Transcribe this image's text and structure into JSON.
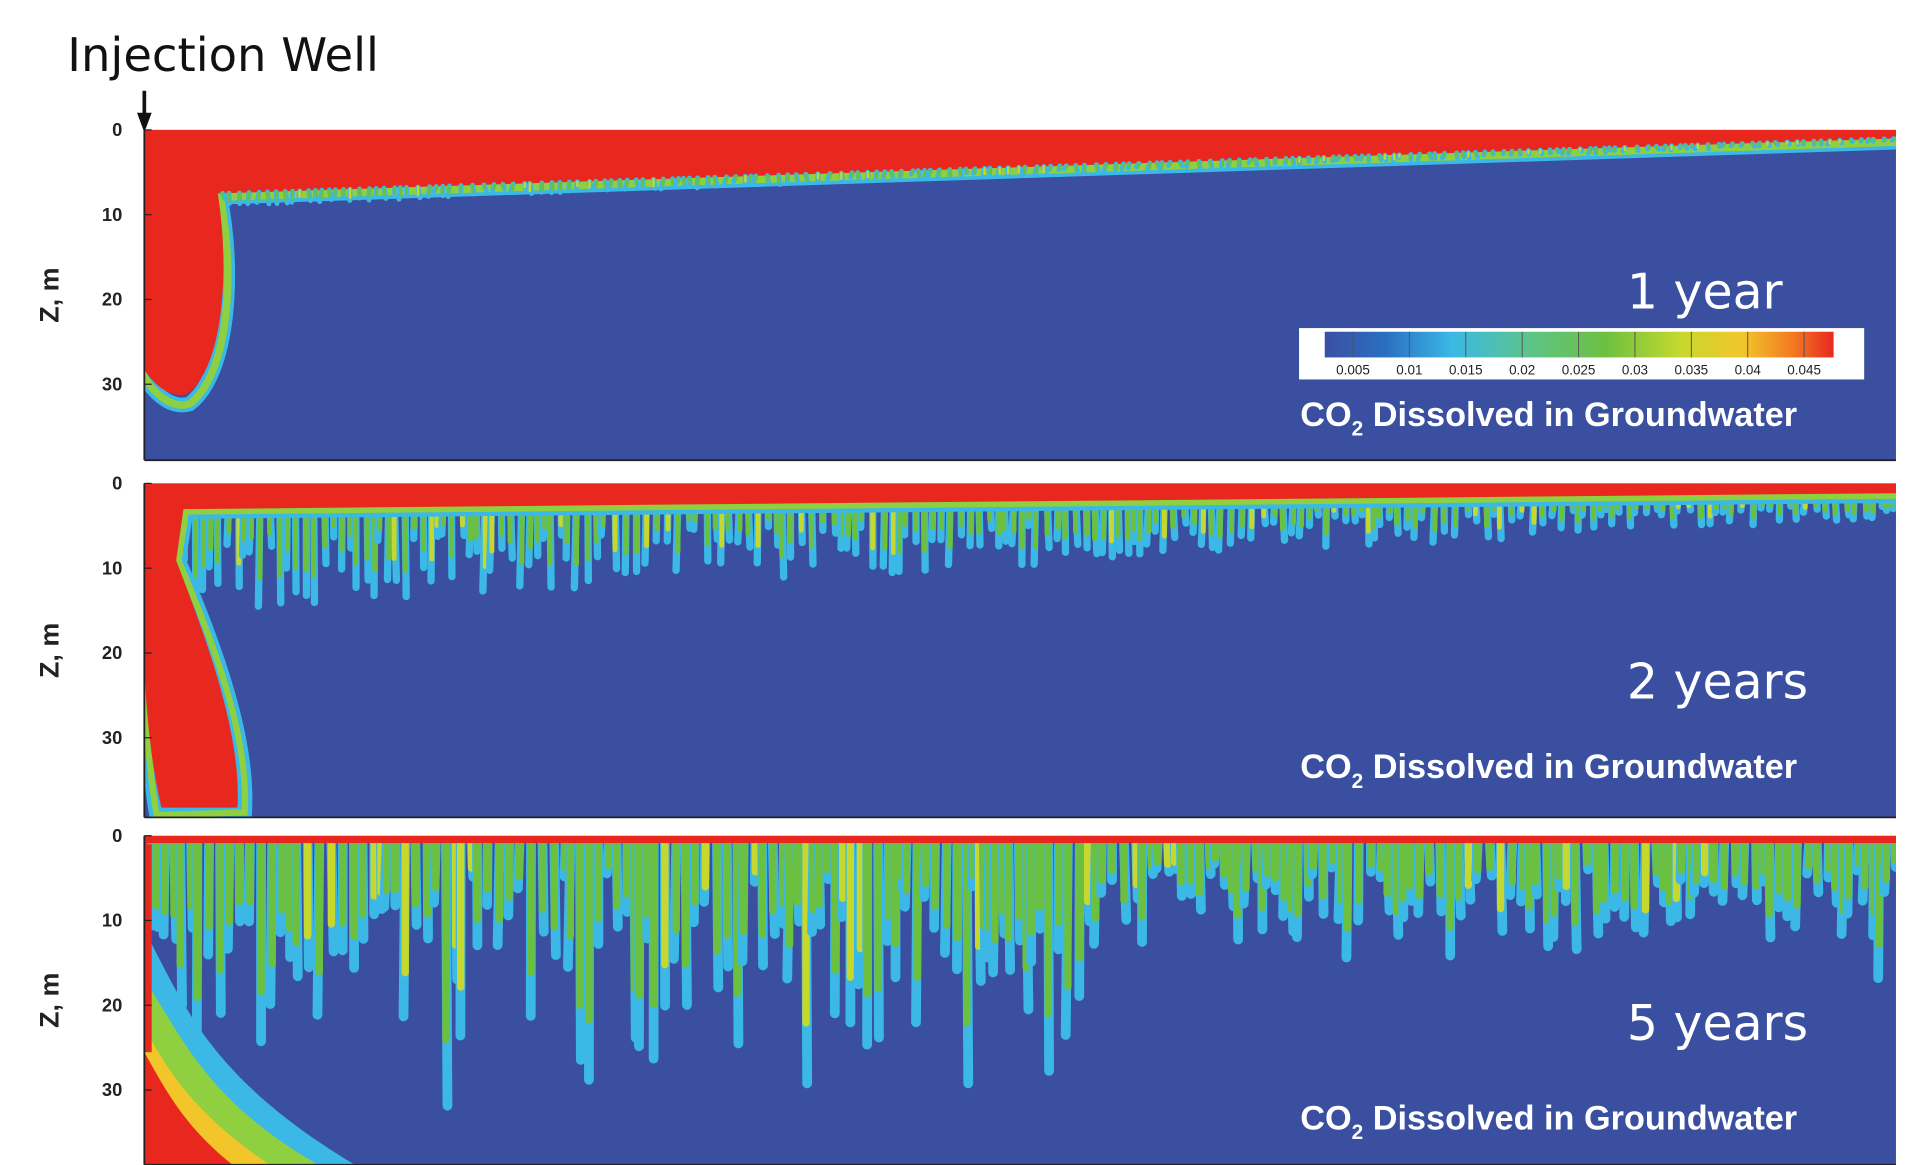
{
  "header": {
    "title": "Injection Well"
  },
  "panels": [
    {
      "label": "1 year",
      "yaxis": {
        "label": "Z, m",
        "ticks": [
          0,
          10,
          20,
          30
        ]
      },
      "caption": {
        "main": "CO",
        "subscript": "2",
        "rest": " Dissolved in Groundwater"
      }
    },
    {
      "label": "2 years",
      "yaxis": {
        "label": "Z, m",
        "ticks": [
          0,
          10,
          20,
          30
        ]
      },
      "caption": {
        "main": "CO",
        "subscript": "2",
        "rest": " Dissolved in Groundwater"
      }
    },
    {
      "label": "5 years",
      "yaxis": {
        "label": "Z, m",
        "ticks": [
          0,
          10,
          20,
          30
        ]
      },
      "caption": {
        "main": "CO",
        "subscript": "2",
        "rest": " Dissolved in Groundwater"
      }
    }
  ],
  "colorbar": {
    "ticks": [
      0.005,
      0.01,
      0.015,
      0.02,
      0.025,
      0.03,
      0.035,
      0.04,
      0.045
    ]
  }
}
